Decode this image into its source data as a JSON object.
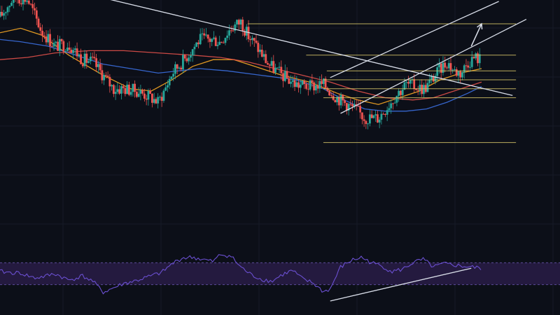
{
  "colors": {
    "background": "#0c0f18",
    "grid": "#161b27",
    "candle_up": "#26a69a",
    "candle_down": "#ef5350",
    "ma_fast": "#f5a623",
    "ma_mid": "#e0504a",
    "ma_slow": "#3b6fe0",
    "trendline": "#d8dde8",
    "fib_line": "#d9c86a",
    "rsi_line": "#6a4fd0",
    "rsi_band_fill": "#241a3f",
    "rsi_band_border": "#5b4a9a"
  },
  "chart_data": [
    {
      "type": "candlestick",
      "panel": "price",
      "title": "",
      "xlabel": "",
      "ylabel": "",
      "x_range": [
        0,
        140
      ],
      "y_range": [
        0,
        100
      ],
      "grid": true,
      "close_path": [
        [
          0,
          83
        ],
        [
          4,
          92
        ],
        [
          8,
          91
        ],
        [
          12,
          77
        ],
        [
          16,
          70
        ],
        [
          20,
          71
        ],
        [
          24,
          64
        ],
        [
          27,
          63
        ],
        [
          30,
          57
        ],
        [
          33,
          51
        ],
        [
          36,
          51
        ],
        [
          40,
          50
        ],
        [
          44,
          47
        ],
        [
          46,
          45
        ],
        [
          48,
          51
        ],
        [
          50,
          58
        ],
        [
          54,
          65
        ],
        [
          58,
          73
        ],
        [
          62,
          73
        ],
        [
          64,
          72
        ],
        [
          67,
          78
        ],
        [
          70,
          81
        ],
        [
          72,
          75
        ],
        [
          75,
          69
        ],
        [
          78,
          62
        ],
        [
          82,
          57
        ],
        [
          86,
          53
        ],
        [
          90,
          52
        ],
        [
          94,
          53
        ],
        [
          98,
          47
        ],
        [
          102,
          43
        ],
        [
          104,
          41
        ],
        [
          106,
          38
        ],
        [
          110,
          38
        ],
        [
          112,
          42
        ],
        [
          115,
          48
        ],
        [
          118,
          53
        ],
        [
          121,
          52
        ],
        [
          123,
          51
        ],
        [
          124,
          52
        ],
        [
          126,
          56
        ],
        [
          128,
          60
        ],
        [
          130,
          63
        ],
        [
          132,
          59
        ],
        [
          134,
          58
        ],
        [
          136,
          63
        ],
        [
          138,
          65
        ],
        [
          140,
          64
        ]
      ],
      "moving_averages": [
        {
          "key": "ma_fast",
          "values": [
            [
              0,
              76
            ],
            [
              6,
              78
            ],
            [
              12,
              75
            ],
            [
              20,
              66
            ],
            [
              30,
              57
            ],
            [
              38,
              51
            ],
            [
              44,
              50
            ],
            [
              50,
              55
            ],
            [
              56,
              61
            ],
            [
              62,
              64
            ],
            [
              68,
              64
            ],
            [
              74,
              61
            ],
            [
              82,
              57
            ],
            [
              90,
              54
            ],
            [
              98,
              49
            ],
            [
              104,
              46
            ],
            [
              110,
              44
            ],
            [
              116,
              47
            ],
            [
              122,
              50
            ],
            [
              128,
              55
            ],
            [
              134,
              58
            ],
            [
              140,
              60
            ]
          ]
        },
        {
          "key": "ma_mid",
          "values": [
            [
              0,
              64
            ],
            [
              8,
              65
            ],
            [
              16,
              67
            ],
            [
              26,
              68
            ],
            [
              36,
              68
            ],
            [
              46,
              67
            ],
            [
              56,
              66
            ],
            [
              64,
              65
            ],
            [
              72,
              63
            ],
            [
              80,
              60
            ],
            [
              88,
              57
            ],
            [
              96,
              54
            ],
            [
              104,
              50
            ],
            [
              112,
              47
            ],
            [
              120,
              46
            ],
            [
              126,
              47
            ],
            [
              132,
              50
            ],
            [
              140,
              54
            ]
          ]
        },
        {
          "key": "ma_slow",
          "values": [
            [
              0,
              73
            ],
            [
              6,
              72
            ],
            [
              14,
              70
            ],
            [
              22,
              66
            ],
            [
              30,
              62
            ],
            [
              38,
              60
            ],
            [
              46,
              58
            ],
            [
              52,
              59
            ],
            [
              58,
              60
            ],
            [
              66,
              59
            ],
            [
              76,
              57
            ],
            [
              86,
              55
            ],
            [
              94,
              51
            ],
            [
              100,
              46
            ],
            [
              106,
              42
            ],
            [
              112,
              41
            ],
            [
              118,
              41
            ],
            [
              124,
              42
            ],
            [
              130,
              45
            ],
            [
              136,
              49
            ],
            [
              140,
              52
            ]
          ]
        }
      ],
      "trendlines": [
        {
          "from": [
            7,
            100
          ],
          "to": [
            149,
            48
          ]
        },
        {
          "from": [
            99,
            40
          ],
          "to": [
            153,
            82
          ]
        },
        {
          "from": [
            96,
            56
          ],
          "to": [
            145,
            90
          ]
        }
      ],
      "horizontal_levels": [
        {
          "value": 80,
          "x_start": 72,
          "x_end": 150
        },
        {
          "value": 66,
          "x_start": 89,
          "x_end": 150
        },
        {
          "value": 59,
          "x_start": 95,
          "x_end": 150
        },
        {
          "value": 55,
          "x_start": 94,
          "x_end": 150
        },
        {
          "value": 51,
          "x_start": 94,
          "x_end": 150
        },
        {
          "value": 47,
          "x_start": 94,
          "x_end": 150
        },
        {
          "value": 27,
          "x_start": 94,
          "x_end": 150
        }
      ],
      "projection_arrow": {
        "from": [
          137,
          70
        ],
        "to": [
          140,
          80
        ]
      }
    },
    {
      "type": "line",
      "panel": "oscillator",
      "title": "",
      "xlabel": "",
      "ylabel": "",
      "x_range": [
        0,
        140
      ],
      "y_range": [
        0,
        100
      ],
      "band": [
        30,
        70
      ],
      "series": [
        {
          "key": "rsi_line",
          "values": [
            [
              0,
              54
            ],
            [
              3,
              52
            ],
            [
              6,
              51
            ],
            [
              10,
              42
            ],
            [
              13,
              45
            ],
            [
              16,
              50
            ],
            [
              20,
              38
            ],
            [
              24,
              46
            ],
            [
              27,
              36
            ],
            [
              30,
              16
            ],
            [
              33,
              24
            ],
            [
              36,
              32
            ],
            [
              40,
              38
            ],
            [
              44,
              46
            ],
            [
              47,
              52
            ],
            [
              50,
              68
            ],
            [
              53,
              79
            ],
            [
              56,
              80
            ],
            [
              59,
              76
            ],
            [
              62,
              72
            ],
            [
              64,
              85
            ],
            [
              67,
              83
            ],
            [
              70,
              62
            ],
            [
              73,
              48
            ],
            [
              76,
              40
            ],
            [
              79,
              36
            ],
            [
              82,
              48
            ],
            [
              85,
              56
            ],
            [
              88,
              40
            ],
            [
              91,
              33
            ],
            [
              94,
              17
            ],
            [
              96,
              22
            ],
            [
              99,
              62
            ],
            [
              102,
              74
            ],
            [
              105,
              80
            ],
            [
              108,
              70
            ],
            [
              111,
              64
            ],
            [
              114,
              54
            ],
            [
              117,
              58
            ],
            [
              120,
              70
            ],
            [
              123,
              76
            ],
            [
              126,
              62
            ],
            [
              129,
              68
            ],
            [
              132,
              66
            ],
            [
              134,
              64
            ],
            [
              137,
              62
            ],
            [
              140,
              60
            ]
          ]
        }
      ],
      "trendlines": [
        {
          "from": [
            96,
            0
          ],
          "to": [
            137,
            60
          ]
        }
      ]
    }
  ]
}
